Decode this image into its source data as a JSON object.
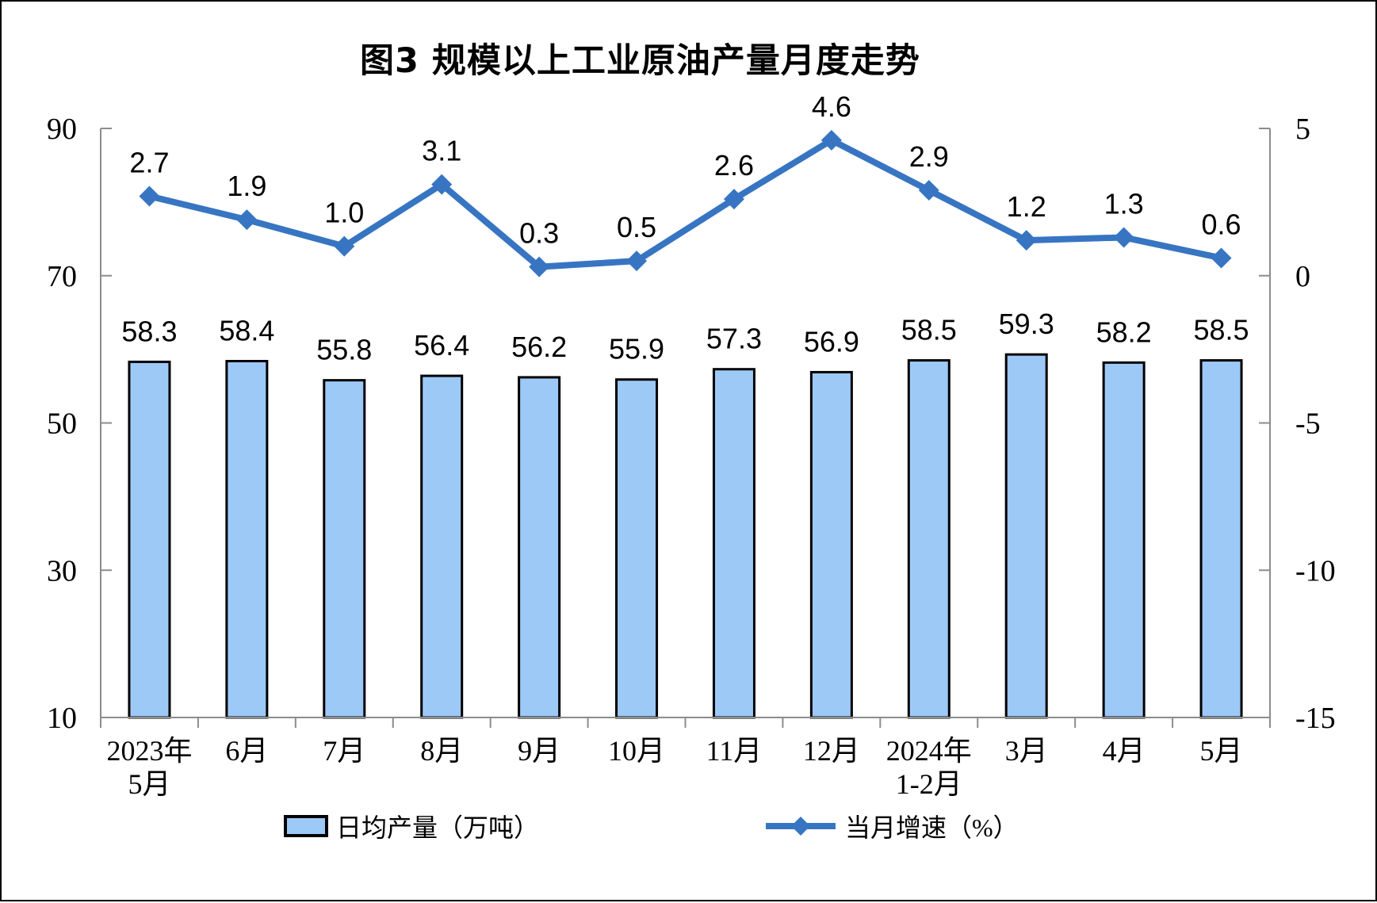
{
  "chart_data": {
    "type": "bar",
    "combo": "bar+line",
    "title": "图3 规模以上工业原油产量月度走势",
    "categories": [
      [
        "2023年",
        "5月"
      ],
      [
        "6月"
      ],
      [
        "7月"
      ],
      [
        "8月"
      ],
      [
        "9月"
      ],
      [
        "10月"
      ],
      [
        "11月"
      ],
      [
        "12月"
      ],
      [
        "2024年",
        "1-2月"
      ],
      [
        "3月"
      ],
      [
        "4月"
      ],
      [
        "5月"
      ]
    ],
    "series": [
      {
        "name": "日均产量（万吨）",
        "type": "bar",
        "axis": "left",
        "values": [
          58.3,
          58.4,
          55.8,
          56.4,
          56.2,
          55.9,
          57.3,
          56.9,
          58.5,
          59.3,
          58.2,
          58.5
        ],
        "labels": [
          "58.3",
          "58.4",
          "55.8",
          "56.4",
          "56.2",
          "55.9",
          "57.3",
          "56.9",
          "58.5",
          "59.3",
          "58.2",
          "58.5"
        ]
      },
      {
        "name": "当月增速（%）",
        "type": "line",
        "axis": "right",
        "marker": "diamond",
        "values": [
          2.7,
          1.9,
          1.0,
          3.1,
          0.3,
          0.5,
          2.6,
          4.6,
          2.9,
          1.2,
          1.3,
          0.6
        ],
        "labels": [
          "2.7",
          "1.9",
          "1.0",
          "3.1",
          "0.3",
          "0.5",
          "2.6",
          "4.6",
          "2.9",
          "1.2",
          "1.3",
          "0.6"
        ]
      }
    ],
    "left_axis": {
      "min": 10,
      "max": 90,
      "ticks": [
        90,
        70,
        50,
        30,
        10
      ]
    },
    "right_axis": {
      "min": -15,
      "max": 5,
      "ticks": [
        5,
        0,
        -5,
        -10,
        -15
      ]
    },
    "grid": false,
    "legend_position": "bottom"
  },
  "colors": {
    "bar_fill": "#9DC9F7",
    "bar_border": "#000000",
    "line": "#3775C2",
    "axis": "#8C8C8C",
    "text": "#000000",
    "background": "#FFFFFF"
  }
}
